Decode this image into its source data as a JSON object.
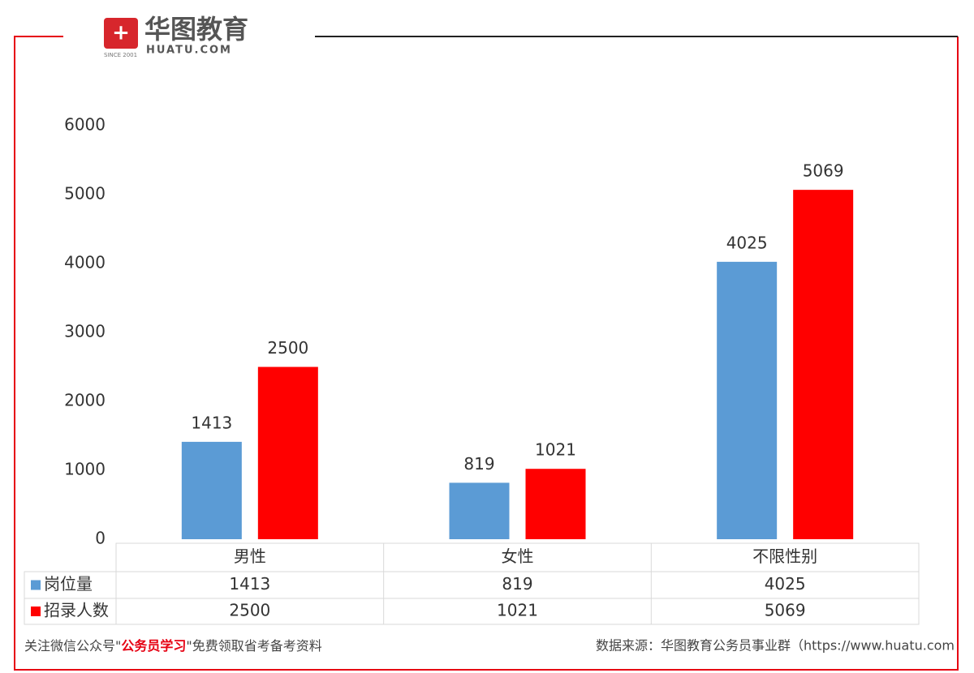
{
  "header": {
    "brand": "华图教育",
    "site": "HUATU.COM",
    "since": "SINCE 2001"
  },
  "chart_data": {
    "type": "bar",
    "categories": [
      "男性",
      "女性",
      "不限性别"
    ],
    "series": [
      {
        "name": "岗位量",
        "color": "#5b9bd5",
        "values": [
          1413,
          819,
          4025
        ]
      },
      {
        "name": "招录人数",
        "color": "#ff0000",
        "values": [
          2500,
          1021,
          5069
        ]
      }
    ],
    "ylim": [
      0,
      6000
    ],
    "yticks": [
      0,
      1000,
      2000,
      3000,
      4000,
      5000,
      6000
    ],
    "grid": false,
    "data_table": true
  },
  "footer": {
    "prefix": "关注微信公众号\"",
    "highlight": "公务员学习",
    "suffix": "\"免费领取省考备考资料",
    "source": "数据来源：华图教育公务员事业群（https://www.huatu.com"
  }
}
